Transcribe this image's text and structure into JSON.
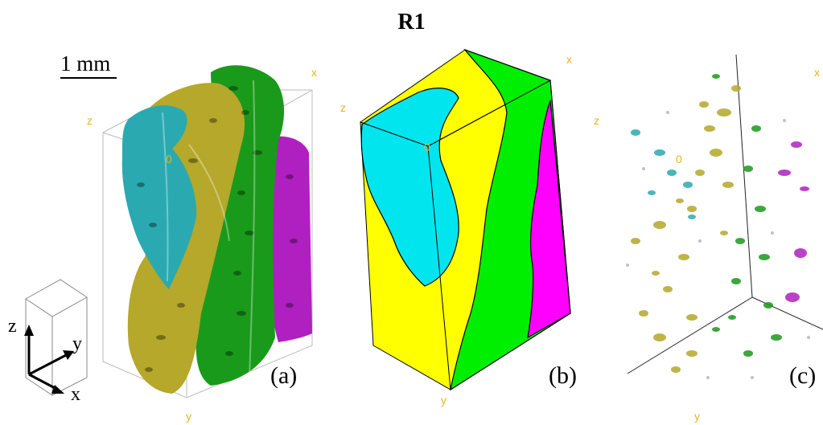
{
  "title": "R1",
  "scale_bar": {
    "label": "1 mm"
  },
  "orientation_key": {
    "z": "z",
    "y": "y",
    "x": "x"
  },
  "panels": [
    {
      "id": "a",
      "label": "(a)",
      "axis_labels": {
        "x": "x",
        "y": "y",
        "z": "z",
        "origin": "0"
      }
    },
    {
      "id": "b",
      "label": "(b)",
      "axis_labels": {
        "x": "x",
        "y": "y",
        "z": "z",
        "origin": "0"
      }
    },
    {
      "id": "c",
      "label": "(c)",
      "axis_labels": {
        "x": "x",
        "y": "y",
        "z": "z",
        "origin": "0"
      }
    }
  ],
  "colors": {
    "cyan": "#00e5ee",
    "yellow": "#ffff00",
    "green": "#00ee00",
    "magenta": "#ff00ff",
    "olive": "#b5a82a",
    "dark_green": "#1a9a1a",
    "teal": "#2aaab0",
    "purple": "#b020c0",
    "axis_label": "#e8b41c"
  }
}
